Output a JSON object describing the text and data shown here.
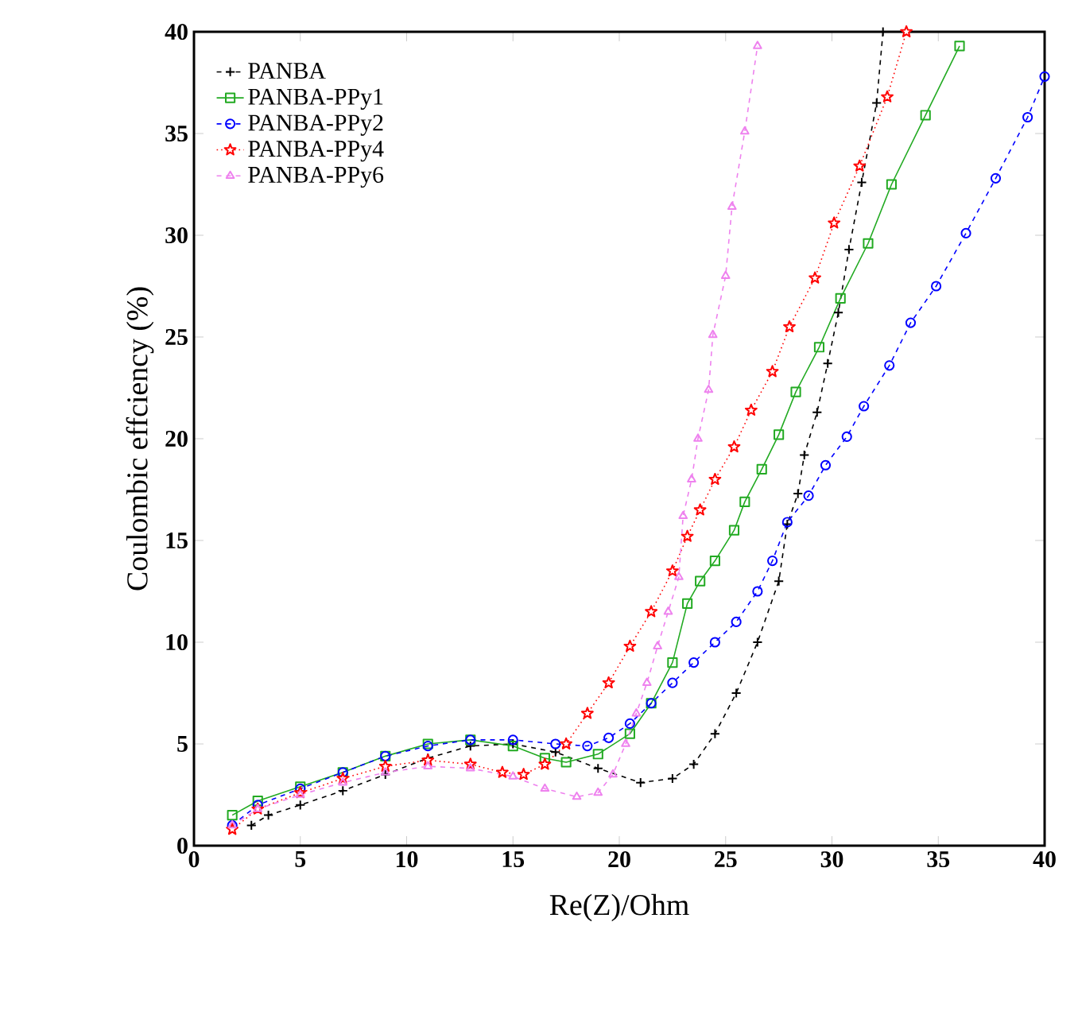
{
  "chart_data": {
    "type": "line",
    "xlabel": "Re(Z)/Ohm",
    "ylabel": "Coulombic effciency (%)",
    "xlim": [
      0,
      40
    ],
    "ylim": [
      0,
      40
    ],
    "xticks": [
      0,
      5,
      10,
      15,
      20,
      25,
      30,
      35,
      40
    ],
    "yticks": [
      0,
      5,
      10,
      15,
      20,
      25,
      30,
      35,
      40
    ],
    "grid": false,
    "legend": "top left",
    "series": [
      {
        "name": "PANBA",
        "color": "#000000",
        "marker": "cross",
        "line_style": "dashed",
        "x": [
          2.7,
          3.5,
          5,
          7,
          9,
          11,
          13,
          15,
          17,
          19,
          21,
          22.5,
          23.5,
          24.5,
          25.5,
          26.5,
          27.5,
          27.9,
          28.4,
          28.7,
          29.3,
          29.8,
          30.3,
          30.8,
          31.4,
          32.1,
          32.4
        ],
        "values": [
          1.0,
          1.5,
          2.0,
          2.7,
          3.5,
          4.3,
          4.9,
          5.0,
          4.6,
          3.8,
          3.1,
          3.3,
          4.0,
          5.5,
          7.5,
          10,
          13,
          15.8,
          17.3,
          19.2,
          21.3,
          23.7,
          26.2,
          29.3,
          32.6,
          36.5,
          40
        ]
      },
      {
        "name": "PANBA-PPy1",
        "color": "#22aa22",
        "marker": "square",
        "line_style": "solid",
        "x": [
          1.8,
          3,
          5,
          7,
          9,
          11,
          13,
          15,
          16.5,
          17.5,
          19,
          20.5,
          21.5,
          22.5,
          23.2,
          23.8,
          24.5,
          25.4,
          25.9,
          26.7,
          27.5,
          28.3,
          29.4,
          30.4,
          31.7,
          32.8,
          34.4,
          36.0
        ],
        "values": [
          1.5,
          2.2,
          2.9,
          3.6,
          4.4,
          5.0,
          5.2,
          4.9,
          4.3,
          4.1,
          4.5,
          5.5,
          7,
          9,
          11.9,
          13,
          14,
          15.5,
          16.9,
          18.5,
          20.2,
          22.3,
          24.5,
          26.9,
          29.6,
          32.5,
          35.9,
          39.3
        ]
      },
      {
        "name": "PANBA-PPy2",
        "color": "#0000ff",
        "marker": "circle",
        "line_style": "dashed",
        "x": [
          1.8,
          3,
          5,
          7,
          9,
          11,
          13,
          15,
          17,
          18.5,
          19.5,
          20.5,
          21.5,
          22.5,
          23.5,
          24.5,
          25.5,
          26.5,
          27.2,
          27.9,
          28.9,
          29.7,
          30.7,
          31.5,
          32.7,
          33.7,
          34.9,
          36.3,
          37.7,
          39.2,
          40
        ],
        "values": [
          1.0,
          2.0,
          2.8,
          3.6,
          4.4,
          4.9,
          5.2,
          5.2,
          5.0,
          4.9,
          5.3,
          6.0,
          7.0,
          8.0,
          9.0,
          10,
          11,
          12.5,
          14,
          15.9,
          17.2,
          18.7,
          20.1,
          21.6,
          23.6,
          25.7,
          27.5,
          30.1,
          32.8,
          35.8,
          37.8
        ]
      },
      {
        "name": "PANBA-PPy4",
        "color": "#ff0000",
        "marker": "star",
        "line_style": "dotted",
        "x": [
          1.8,
          3,
          5,
          7,
          9,
          11,
          13,
          14.5,
          15.5,
          16.5,
          17.5,
          18.5,
          19.5,
          20.5,
          21.5,
          22.5,
          23.2,
          23.8,
          24.5,
          25.4,
          26.2,
          27.2,
          28.0,
          29.2,
          30.1,
          31.3,
          32.6,
          33.5
        ],
        "values": [
          0.8,
          1.8,
          2.6,
          3.3,
          3.9,
          4.2,
          4.0,
          3.6,
          3.5,
          4.0,
          5,
          6.5,
          8,
          9.8,
          11.5,
          13.5,
          15.2,
          16.5,
          18.0,
          19.6,
          21.4,
          23.3,
          25.5,
          27.9,
          30.6,
          33.4,
          36.8,
          40
        ]
      },
      {
        "name": "PANBA-PPy6",
        "color": "#ee82ee",
        "marker": "triangle",
        "line_style": "dashed",
        "x": [
          1.8,
          3,
          5,
          7,
          9,
          11,
          13,
          15,
          16.5,
          18,
          19,
          19.7,
          20.3,
          20.8,
          21.3,
          21.8,
          22.3,
          22.8,
          23.0,
          23.4,
          23.7,
          24.2,
          24.4,
          25.0,
          25.3,
          25.9,
          26.5
        ],
        "values": [
          1.0,
          1.8,
          2.5,
          3.1,
          3.6,
          3.9,
          3.8,
          3.4,
          2.8,
          2.4,
          2.6,
          3.5,
          5,
          6.5,
          8,
          9.8,
          11.5,
          13.2,
          16.2,
          18.0,
          20.0,
          22.4,
          25.1,
          28.0,
          31.4,
          35.1,
          39.3
        ]
      }
    ]
  }
}
